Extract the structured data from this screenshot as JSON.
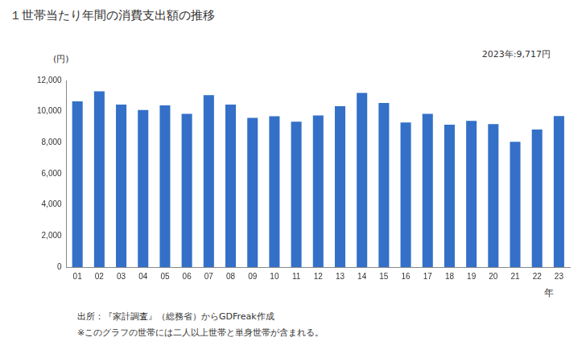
{
  "chart_data": {
    "type": "bar",
    "title": "１世帯当たり年間の消費支出額の推移",
    "annotations": [
      "2023年:9,717円"
    ],
    "y_label": "(円)",
    "x_label": "年",
    "footnotes": [
      "出所：『家計調査』（総務省）からGDFreak作成",
      "※このグラフの世帯には二人以上世帯と単身世帯が含まれる。"
    ],
    "categories": [
      "01",
      "02",
      "03",
      "04",
      "05",
      "06",
      "07",
      "08",
      "09",
      "10",
      "11",
      "12",
      "13",
      "14",
      "15",
      "16",
      "17",
      "18",
      "19",
      "20",
      "21",
      "22",
      "23"
    ],
    "values": [
      10650,
      11300,
      10450,
      10100,
      10400,
      9850,
      11050,
      10450,
      9600,
      9700,
      9350,
      9750,
      10350,
      11200,
      10550,
      9300,
      9850,
      9150,
      9400,
      9200,
      8050,
      8850,
      9717
    ],
    "color": "#3470c8",
    "ylim": [
      0,
      12000
    ],
    "yticks": [
      0,
      {
        "value": 2000,
        "label": "2,000"
      },
      {
        "value": 4000,
        "label": "4,000"
      },
      {
        "value": 6000,
        "label": "6,000"
      },
      {
        "value": 8000,
        "label": "8,000"
      },
      {
        "value": 10000,
        "label": "10,000"
      },
      {
        "value": 12000,
        "label": "12,000"
      }
    ],
    "grid": false
  }
}
